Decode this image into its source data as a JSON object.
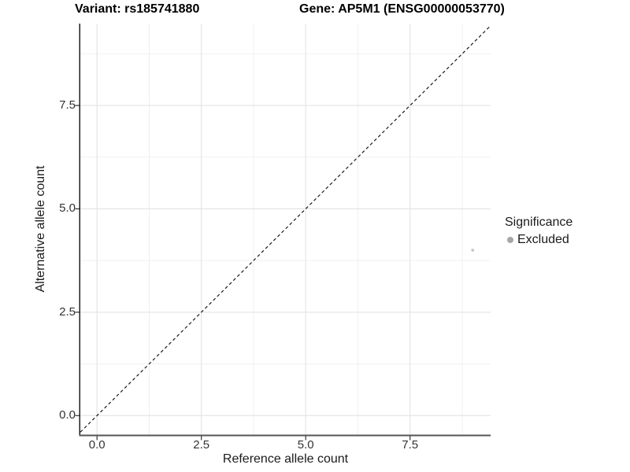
{
  "titles": {
    "variant": "Variant: rs185741880",
    "gene": "Gene: AP5M1 (ENSG00000053770)"
  },
  "axes": {
    "x": {
      "label": "Reference allele count",
      "tick_labels": [
        "0.0",
        "2.5",
        "5.0",
        "7.5"
      ]
    },
    "y": {
      "label": "Alternative allele count",
      "tick_labels": [
        "0.0",
        "2.5",
        "5.0",
        "7.5"
      ]
    }
  },
  "legend": {
    "title": "Significance",
    "items": [
      {
        "label": "Excluded",
        "color": "#a6a6a6"
      }
    ]
  },
  "chart_data": {
    "type": "scatter",
    "title": "Variant: rs185741880 | Gene: AP5M1 (ENSG00000053770)",
    "xlabel": "Reference allele count",
    "ylabel": "Alternative allele count",
    "xlim": [
      -0.4,
      9.43
    ],
    "ylim": [
      -0.47,
      9.48
    ],
    "x_ticks": [
      0.0,
      2.5,
      5.0,
      7.5
    ],
    "y_ticks": [
      0.0,
      2.5,
      5.0,
      7.5
    ],
    "x_minor_ticks": [
      1.25,
      3.75,
      6.25,
      8.75
    ],
    "y_minor_ticks": [
      1.25,
      3.75,
      6.25,
      8.75
    ],
    "grid": true,
    "legend_position": "right",
    "series": [
      {
        "name": "Excluded",
        "color": "#c6c6c6",
        "point_radius": 1.9,
        "points": [
          {
            "x": 9,
            "y": 4
          }
        ]
      }
    ],
    "reference_line": {
      "kind": "identity",
      "equation": "y = x",
      "style": "dashed",
      "color": "#1a1a1a"
    }
  },
  "style": {
    "grid_major_color": "#e3e3e3",
    "grid_minor_color": "#f0f0f0",
    "axis_line_color": "#333333",
    "tick_mark_color": "#333333"
  }
}
